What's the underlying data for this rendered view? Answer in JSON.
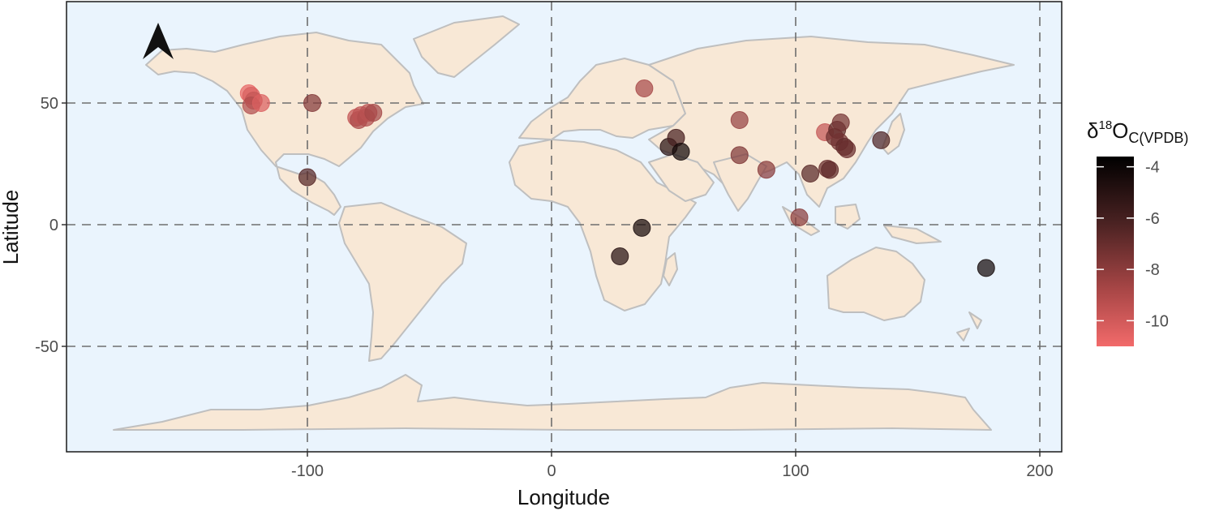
{
  "chart_data": {
    "type": "scatter",
    "xlabel": "Longitude",
    "ylabel": "Latitude",
    "xlim": [
      -200,
      210
    ],
    "ylim": [
      -93,
      90
    ],
    "x_ticks": [
      "-100",
      "0",
      "100",
      "200"
    ],
    "y_ticks": [
      "50",
      "0",
      "-50"
    ],
    "grid": "dashed major gridlines",
    "north_arrow": "top-left",
    "legend": {
      "title_base": "δ",
      "title_sup": "18",
      "title_main": "O",
      "title_sub": "C(VPDB)",
      "ticks": [
        "-4",
        "-6",
        "-8",
        "-10"
      ],
      "range": [
        -11,
        -3.6
      ],
      "low_color": "#f26a6a",
      "high_color": "#000000",
      "placement": "right"
    },
    "colors": {
      "ocean": "#eaf4fd",
      "land": "#f8e8d6",
      "border": "#bfbfbf",
      "gridline": "#6e6e6e"
    },
    "points": [
      {
        "lon": -124,
        "lat": 54,
        "value": -10.7
      },
      {
        "lon": -123,
        "lat": 53,
        "value": -10.2
      },
      {
        "lon": -122,
        "lat": 51,
        "value": -9.6
      },
      {
        "lon": -123,
        "lat": 49,
        "value": -9.0
      },
      {
        "lon": -119,
        "lat": 50,
        "value": -10.3
      },
      {
        "lon": -98,
        "lat": 50,
        "value": -7.6
      },
      {
        "lon": -80,
        "lat": 44,
        "value": -9.6
      },
      {
        "lon": -79,
        "lat": 43,
        "value": -8.8
      },
      {
        "lon": -78,
        "lat": 45,
        "value": -9.4
      },
      {
        "lon": -76,
        "lat": 44,
        "value": -9.0
      },
      {
        "lon": -75,
        "lat": 46,
        "value": -9.3
      },
      {
        "lon": -73,
        "lat": 46,
        "value": -8.6
      },
      {
        "lon": -100,
        "lat": 19.5,
        "value": -6.2
      },
      {
        "lon": 38,
        "lat": 56,
        "value": -8.7
      },
      {
        "lon": 48,
        "lat": 32,
        "value": -4.8
      },
      {
        "lon": 51,
        "lat": 35.7,
        "value": -5.8
      },
      {
        "lon": 53,
        "lat": 30,
        "value": -4.2
      },
      {
        "lon": 37,
        "lat": -1.3,
        "value": -4.3
      },
      {
        "lon": 28,
        "lat": -13,
        "value": -4.8
      },
      {
        "lon": 77,
        "lat": 43,
        "value": -8.2
      },
      {
        "lon": 77,
        "lat": 28.6,
        "value": -7.5
      },
      {
        "lon": 88,
        "lat": 22.6,
        "value": -7.8
      },
      {
        "lon": 106,
        "lat": 21,
        "value": -6.3
      },
      {
        "lon": 113,
        "lat": 23,
        "value": -6.8
      },
      {
        "lon": 114,
        "lat": 22.5,
        "value": -6.5
      },
      {
        "lon": 101.5,
        "lat": 3,
        "value": -7.8
      },
      {
        "lon": 112,
        "lat": 38,
        "value": -9.6
      },
      {
        "lon": 117,
        "lat": 39,
        "value": -6.4
      },
      {
        "lon": 118.5,
        "lat": 42,
        "value": -7.2
      },
      {
        "lon": 116,
        "lat": 36,
        "value": -6.9
      },
      {
        "lon": 118,
        "lat": 34,
        "value": -7.1
      },
      {
        "lon": 120,
        "lat": 32,
        "value": -6.6
      },
      {
        "lon": 121,
        "lat": 31,
        "value": -6.8
      },
      {
        "lon": 135,
        "lat": 34.7,
        "value": -6.0
      },
      {
        "lon": 178,
        "lat": -17.8,
        "value": -4.2
      }
    ]
  }
}
